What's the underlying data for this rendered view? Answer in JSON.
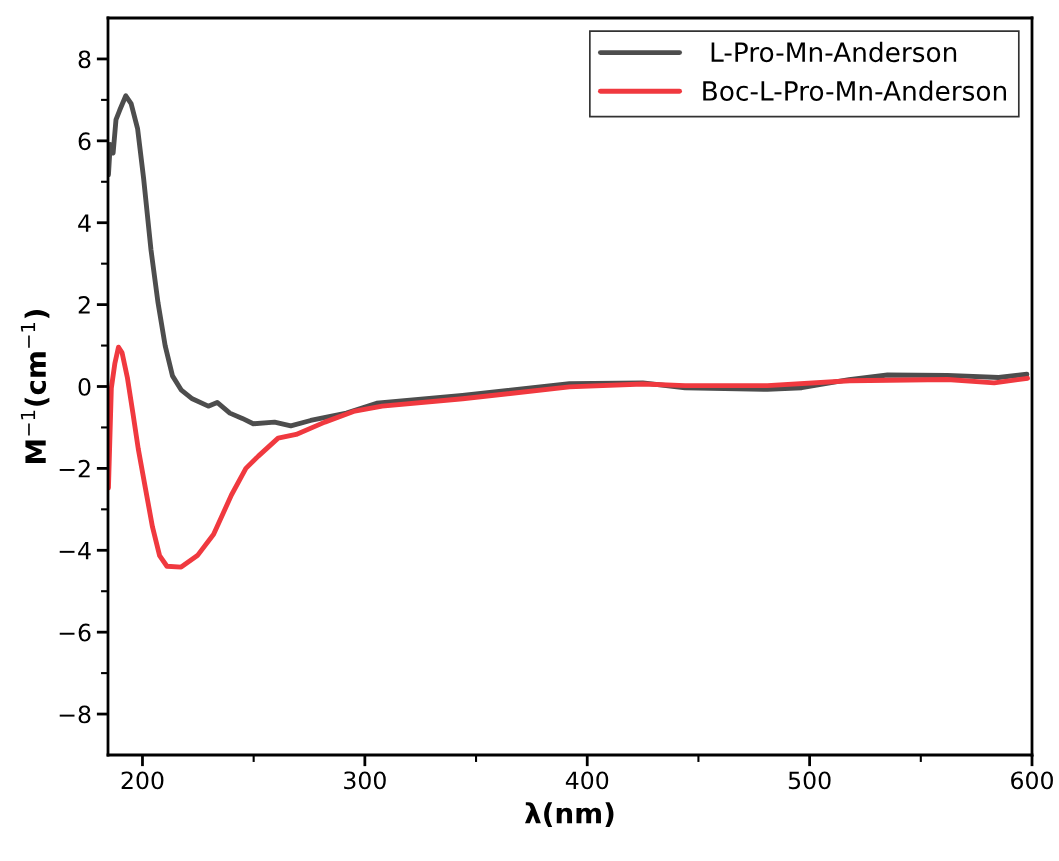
{
  "chart_data": {
    "type": "line",
    "xlabel": "λ(nm)",
    "ylabel": "M$^{−1}$(cm$^{−1}$)",
    "xlim": [
      184.5,
      600
    ],
    "ylim": [
      -9,
      9
    ],
    "xticks": [
      200,
      {
        "value": 250,
        "label": null
      },
      300,
      {
        "value": 350,
        "label": null
      },
      400,
      {
        "value": 450,
        "label": null
      },
      500,
      {
        "value": 550,
        "label": null
      },
      600
    ],
    "yticks": [
      -8,
      {
        "value": -7,
        "label": null
      },
      -6,
      {
        "value": -5,
        "label": null
      },
      -4,
      {
        "value": -3,
        "label": null
      },
      -2,
      {
        "value": -1,
        "label": null
      },
      0,
      {
        "value": 1,
        "label": null
      },
      2,
      {
        "value": 3,
        "label": null
      },
      4,
      {
        "value": 5,
        "label": null
      },
      6,
      {
        "value": 7,
        "label": null
      },
      8
    ],
    "grid": false,
    "legend": "top right",
    "marker": "none",
    "line_style": "solid",
    "series": [
      {
        "name": " L-Pro-Mn-Anderson",
        "color": "#4d4d4d",
        "x": [
          184.7,
          185.5,
          186.8,
          188.1,
          189.7,
          192.5,
          194.9,
          197.8,
          200.5,
          203.8,
          207.0,
          210.2,
          213.5,
          217.5,
          222.4,
          229.6,
          233.6,
          239.3,
          244.9,
          249.8,
          259.4,
          266.7,
          275.6,
          291.7,
          305.3,
          343.9,
          392,
          425,
          444,
          481,
          496.5,
          517.7,
          535,
          562,
          585,
          597.7
        ],
        "values": [
          5.17,
          5.91,
          5.7,
          6.52,
          6.74,
          7.1,
          6.91,
          6.3,
          5.09,
          3.35,
          2.04,
          1.0,
          0.26,
          -0.09,
          -0.3,
          -0.48,
          -0.39,
          -0.65,
          -0.78,
          -0.91,
          -0.87,
          -0.96,
          -0.83,
          -0.65,
          -0.41,
          -0.22,
          0.07,
          0.09,
          -0.03,
          -0.07,
          -0.03,
          0.17,
          0.28,
          0.27,
          0.22,
          0.3
        ]
      },
      {
        "name": "Boc-L-Pro-Mn-Anderson",
        "color": "#f0393f",
        "x": [
          184.7,
          186.0,
          187.6,
          189.2,
          190.8,
          193.2,
          195.7,
          198.1,
          201.3,
          204.5,
          207.7,
          211.0,
          217.4,
          224.7,
          232.0,
          240.0,
          246.5,
          252.1,
          261.0,
          269.1,
          282.0,
          294.9,
          307.8,
          344,
          392,
          425,
          444,
          481,
          518,
          562,
          583,
          598
        ],
        "values": [
          -2.48,
          -0.04,
          0.57,
          0.96,
          0.83,
          0.22,
          -0.65,
          -1.52,
          -2.48,
          -3.43,
          -4.13,
          -4.39,
          -4.41,
          -4.13,
          -3.61,
          -2.65,
          -2.0,
          -1.7,
          -1.26,
          -1.17,
          -0.87,
          -0.61,
          -0.48,
          -0.3,
          -0.01,
          0.06,
          0.02,
          0.02,
          0.14,
          0.17,
          0.09,
          0.2
        ]
      }
    ]
  }
}
